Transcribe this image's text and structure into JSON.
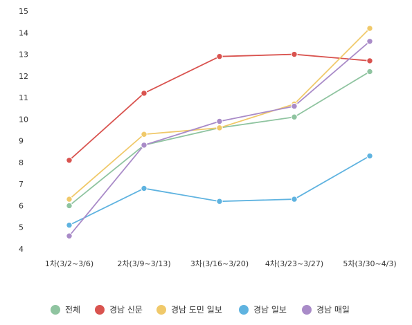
{
  "chart_data": {
    "type": "line",
    "title": "",
    "xlabel": "",
    "ylabel": "",
    "categories": [
      "1차(3/2~3/6)",
      "2차(3/9~3/13)",
      "3차(3/16~3/20)",
      "4차(3/23~3/27)",
      "5차(3/30~4/3)"
    ],
    "ylim": [
      4,
      15
    ],
    "yticks": [
      4,
      5,
      6,
      7,
      8,
      9,
      10,
      11,
      12,
      13,
      14,
      15
    ],
    "grid": false,
    "legend_position": "bottom-center",
    "series": [
      {
        "name": "전체",
        "color": "#8fc4a0",
        "values": [
          6.0,
          8.8,
          9.6,
          10.1,
          12.2
        ]
      },
      {
        "name": "경남 신문",
        "color": "#d9534f",
        "values": [
          8.1,
          11.2,
          12.9,
          13.0,
          12.7
        ]
      },
      {
        "name": "경남 도민 일보",
        "color": "#f0c96a",
        "values": [
          6.3,
          9.3,
          9.6,
          10.7,
          14.2
        ]
      },
      {
        "name": "경남 일보",
        "color": "#5fb3e0",
        "values": [
          5.1,
          6.8,
          6.2,
          6.3,
          8.3
        ]
      },
      {
        "name": "경남 매일",
        "color": "#a98bc8",
        "values": [
          4.6,
          8.8,
          9.9,
          10.6,
          13.6
        ]
      }
    ]
  }
}
